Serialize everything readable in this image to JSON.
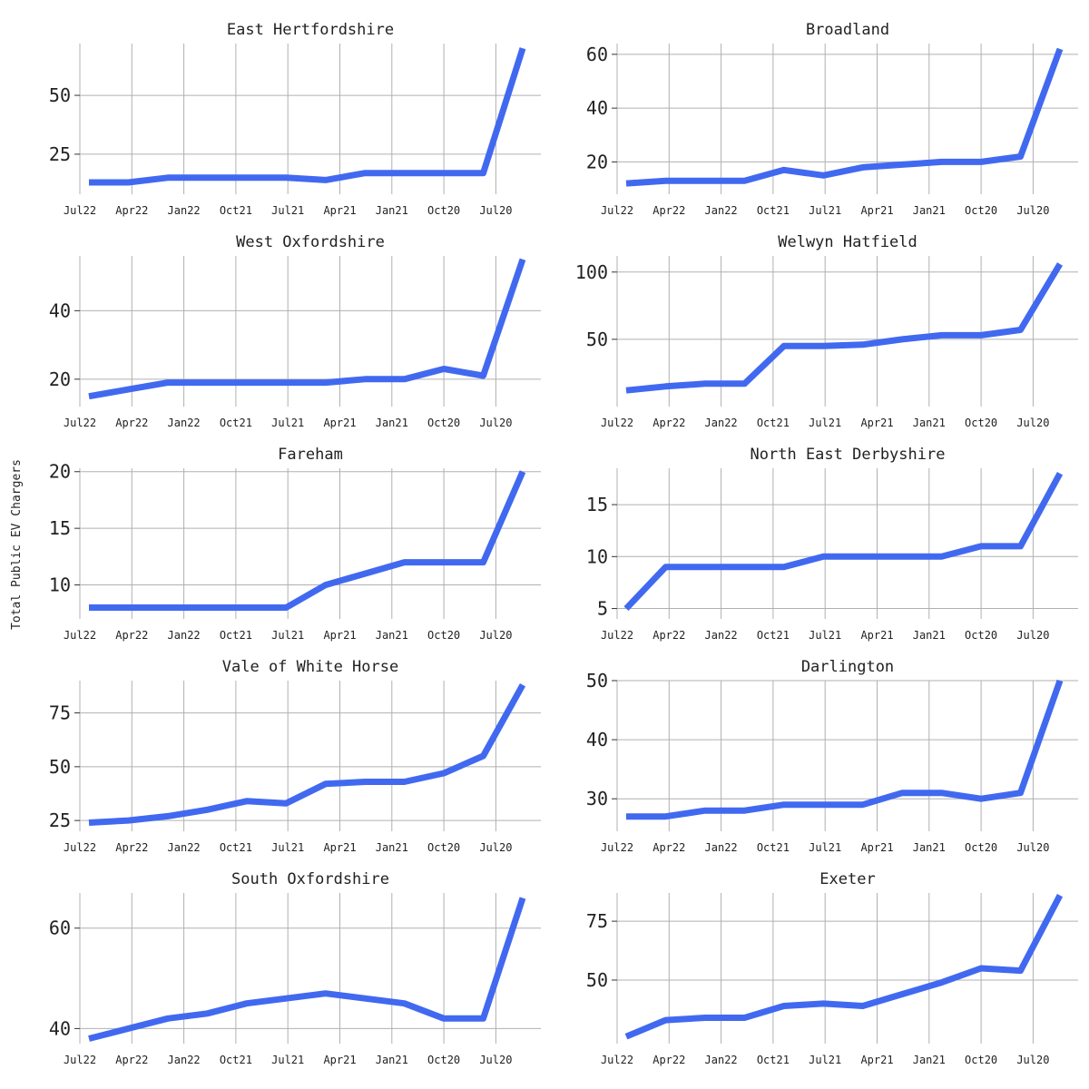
{
  "figure": {
    "ylabel": "Total Public EV Chargers",
    "line_color": "#4169f0",
    "grid_color": "#b0b0b0"
  },
  "chart_data": [
    {
      "type": "line",
      "title": "East Hertfordshire",
      "x_tick_labels": [
        "Jul22",
        "Apr22",
        "Jan22",
        "Oct21",
        "Jul21",
        "Apr21",
        "Jan21",
        "Oct20",
        "Jul20"
      ],
      "values": [
        13,
        13,
        15,
        15,
        15,
        15,
        14,
        17,
        17,
        17,
        17,
        70
      ],
      "yticks": [
        25,
        50
      ],
      "ylim": [
        8,
        72
      ]
    },
    {
      "type": "line",
      "title": "Broadland",
      "x_tick_labels": [
        "Jul22",
        "Apr22",
        "Jan22",
        "Oct21",
        "Jul21",
        "Apr21",
        "Jan21",
        "Oct20",
        "Jul20"
      ],
      "values": [
        12,
        13,
        13,
        13,
        17,
        15,
        18,
        19,
        20,
        20,
        22,
        62
      ],
      "yticks": [
        20,
        40,
        60
      ],
      "ylim": [
        8,
        64
      ]
    },
    {
      "type": "line",
      "title": "West Oxfordshire",
      "x_tick_labels": [
        "Jul22",
        "Apr22",
        "Jan22",
        "Oct21",
        "Jul21",
        "Apr21",
        "Jan21",
        "Oct20",
        "Jul20"
      ],
      "values": [
        15,
        17,
        19,
        19,
        19,
        19,
        19,
        20,
        20,
        23,
        21,
        55
      ],
      "yticks": [
        20,
        40
      ],
      "ylim": [
        12,
        56
      ]
    },
    {
      "type": "line",
      "title": "Welwyn Hatfield",
      "x_tick_labels": [
        "Jul22",
        "Apr22",
        "Jan22",
        "Oct21",
        "Jul21",
        "Apr21",
        "Jan21",
        "Oct20",
        "Jul20"
      ],
      "values": [
        12,
        15,
        17,
        17,
        45,
        45,
        46,
        50,
        53,
        53,
        57,
        106
      ],
      "yticks": [
        50,
        100
      ],
      "ylim": [
        0,
        112
      ]
    },
    {
      "type": "line",
      "title": "Fareham",
      "x_tick_labels": [
        "Jul22",
        "Apr22",
        "Jan22",
        "Oct21",
        "Jul21",
        "Apr21",
        "Jan21",
        "Oct20",
        "Jul20"
      ],
      "values": [
        8,
        8,
        8,
        8,
        8,
        8,
        10,
        11,
        12,
        12,
        12,
        20
      ],
      "yticks": [
        10,
        15,
        20
      ],
      "ylim": [
        7,
        20.3
      ]
    },
    {
      "type": "line",
      "title": "North East Derbyshire",
      "x_tick_labels": [
        "Jul22",
        "Apr22",
        "Jan22",
        "Oct21",
        "Jul21",
        "Apr21",
        "Jan21",
        "Oct20",
        "Jul20"
      ],
      "values": [
        5,
        9,
        9,
        9,
        9,
        10,
        10,
        10,
        10,
        11,
        11,
        18
      ],
      "yticks": [
        5,
        10,
        15
      ],
      "ylim": [
        4,
        18.5
      ]
    },
    {
      "type": "line",
      "title": "Vale of White Horse",
      "x_tick_labels": [
        "Jul22",
        "Apr22",
        "Jan22",
        "Oct21",
        "Jul21",
        "Apr21",
        "Jan21",
        "Oct20",
        "Jul20"
      ],
      "values": [
        24,
        25,
        27,
        30,
        34,
        33,
        42,
        43,
        43,
        47,
        55,
        88
      ],
      "yticks": [
        25,
        50,
        75
      ],
      "ylim": [
        20,
        90
      ]
    },
    {
      "type": "line",
      "title": "Darlington",
      "x_tick_labels": [
        "Jul22",
        "Apr22",
        "Jan22",
        "Oct21",
        "Jul21",
        "Apr21",
        "Jan21",
        "Oct20",
        "Jul20"
      ],
      "values": [
        27,
        27,
        28,
        28,
        29,
        29,
        29,
        31,
        31,
        30,
        31,
        50
      ],
      "yticks": [
        30,
        40,
        50
      ],
      "ylim": [
        24.5,
        50
      ]
    },
    {
      "type": "line",
      "title": "South Oxfordshire",
      "x_tick_labels": [
        "Jul22",
        "Apr22",
        "Jan22",
        "Oct21",
        "Jul21",
        "Apr21",
        "Jan21",
        "Oct20",
        "Jul20"
      ],
      "values": [
        38,
        40,
        42,
        43,
        45,
        46,
        47,
        46,
        45,
        42,
        42,
        66
      ],
      "yticks": [
        40,
        60
      ],
      "ylim": [
        37,
        67
      ]
    },
    {
      "type": "line",
      "title": "Exeter",
      "x_tick_labels": [
        "Jul22",
        "Apr22",
        "Jan22",
        "Oct21",
        "Jul21",
        "Apr21",
        "Jan21",
        "Oct20",
        "Jul20"
      ],
      "values": [
        26,
        33,
        34,
        34,
        39,
        40,
        39,
        44,
        49,
        55,
        54,
        86
      ],
      "yticks": [
        50,
        75
      ],
      "ylim": [
        23,
        87
      ]
    }
  ]
}
